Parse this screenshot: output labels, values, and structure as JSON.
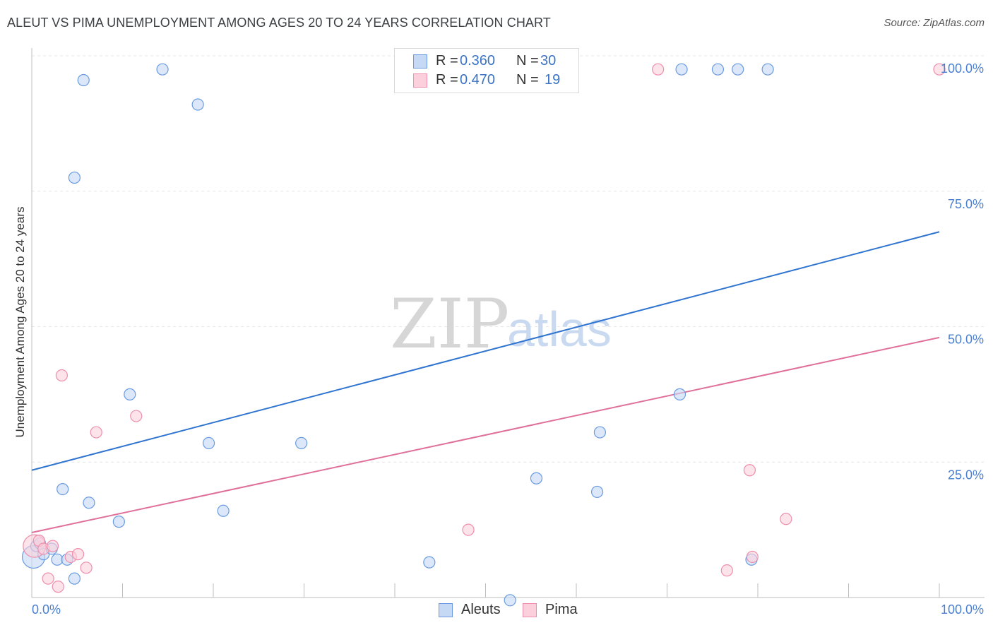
{
  "header": {
    "title": "ALEUT VS PIMA UNEMPLOYMENT AMONG AGES 20 TO 24 YEARS CORRELATION CHART",
    "source": "Source: ZipAtlas.com"
  },
  "legend": {
    "r_label": "R =",
    "n_label": "N =",
    "rows": [
      {
        "series": "Aleuts",
        "r": "0.360",
        "n": "30",
        "color": "#3b73c5"
      },
      {
        "series": "Pima",
        "r": "0.470",
        "n": "19",
        "color": "#e8739b"
      }
    ]
  },
  "watermark": {
    "left": "ZIP",
    "right": "atlas"
  },
  "colors": {
    "aleut_fill": "#c5d9f5",
    "aleut_stroke": "#6a9be0",
    "aleut_line": "#2f74d0",
    "pima_fill": "#fbd0dc",
    "pima_stroke": "#ee8fab",
    "pima_line": "#e0709a",
    "grid": "#e6e6e6",
    "tick_text": "#4a7fd1"
  },
  "chart_data": {
    "type": "scatter",
    "title": "ALEUT VS PIMA UNEMPLOYMENT AMONG AGES 20 TO 24 YEARS CORRELATION CHART",
    "xlabel": "",
    "ylabel": "Unemployment Among Ages 20 to 24 years",
    "xlim": [
      0,
      100
    ],
    "ylim": [
      0,
      100
    ],
    "x_tick_labels": [
      "0.0%",
      "100.0%"
    ],
    "y_ticks": [
      25,
      50,
      75,
      100
    ],
    "y_tick_labels": [
      "25.0%",
      "50.0%",
      "75.0%",
      "100.0%"
    ],
    "grid": true,
    "legend_position": "top-center",
    "series": [
      {
        "name": "Aleuts",
        "r": 0.36,
        "n": 30,
        "trend": {
          "x": [
            0,
            100
          ],
          "y": [
            23.5,
            67.5
          ]
        },
        "points": [
          {
            "x": 0.2,
            "y": 7.5,
            "big": true
          },
          {
            "x": 0.5,
            "y": 9.5
          },
          {
            "x": 0.9,
            "y": 10.0
          },
          {
            "x": 1.3,
            "y": 8.0
          },
          {
            "x": 2.2,
            "y": 9.0
          },
          {
            "x": 2.8,
            "y": 7.0
          },
          {
            "x": 3.4,
            "y": 20.0
          },
          {
            "x": 3.9,
            "y": 7.0
          },
          {
            "x": 4.7,
            "y": 3.5
          },
          {
            "x": 4.7,
            "y": 77.5
          },
          {
            "x": 5.7,
            "y": 95.5
          },
          {
            "x": 6.3,
            "y": 17.5
          },
          {
            "x": 9.6,
            "y": 14.0
          },
          {
            "x": 10.8,
            "y": 37.5
          },
          {
            "x": 14.4,
            "y": 97.5
          },
          {
            "x": 18.3,
            "y": 91.0
          },
          {
            "x": 19.5,
            "y": 28.5
          },
          {
            "x": 21.1,
            "y": 16.0
          },
          {
            "x": 29.7,
            "y": 28.5
          },
          {
            "x": 43.8,
            "y": 6.5
          },
          {
            "x": 52.7,
            "y": -0.5
          },
          {
            "x": 55.6,
            "y": 22.0
          },
          {
            "x": 62.3,
            "y": 19.5
          },
          {
            "x": 62.6,
            "y": 30.5
          },
          {
            "x": 71.4,
            "y": 37.5
          },
          {
            "x": 71.6,
            "y": 97.5
          },
          {
            "x": 75.6,
            "y": 97.5
          },
          {
            "x": 77.8,
            "y": 97.5
          },
          {
            "x": 81.1,
            "y": 97.5
          },
          {
            "x": 79.3,
            "y": 7.0
          }
        ]
      },
      {
        "name": "Pima",
        "r": 0.47,
        "n": 19,
        "trend": {
          "x": [
            0,
            100
          ],
          "y": [
            12.0,
            48.0
          ]
        },
        "points": [
          {
            "x": 0.3,
            "y": 9.5,
            "big": true
          },
          {
            "x": 0.8,
            "y": 10.5
          },
          {
            "x": 1.3,
            "y": 9.0
          },
          {
            "x": 1.8,
            "y": 3.5
          },
          {
            "x": 2.3,
            "y": 9.5
          },
          {
            "x": 2.9,
            "y": 2.0
          },
          {
            "x": 3.3,
            "y": 41.0
          },
          {
            "x": 4.3,
            "y": 7.5
          },
          {
            "x": 5.1,
            "y": 8.0
          },
          {
            "x": 6.0,
            "y": 5.5
          },
          {
            "x": 7.1,
            "y": 30.5
          },
          {
            "x": 11.5,
            "y": 33.5
          },
          {
            "x": 48.1,
            "y": 12.5
          },
          {
            "x": 69.0,
            "y": 97.5
          },
          {
            "x": 76.6,
            "y": 5.0
          },
          {
            "x": 79.1,
            "y": 23.5
          },
          {
            "x": 79.4,
            "y": 7.5
          },
          {
            "x": 83.1,
            "y": 14.5
          },
          {
            "x": 100.0,
            "y": 97.5
          }
        ]
      }
    ]
  }
}
